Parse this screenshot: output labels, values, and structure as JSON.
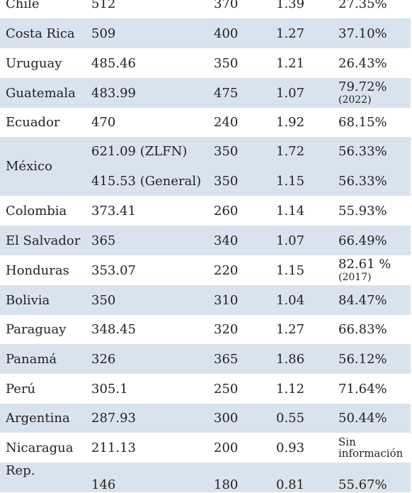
{
  "rows": [
    {
      "country": "Chile",
      "v1": "512",
      "v2": "370",
      "v3": "1.39",
      "v4": "27.35%"
    },
    {
      "country": "Costa Rica",
      "v1": "509",
      "v2": "400",
      "v3": "1.27",
      "v4": "37.10%"
    },
    {
      "country": "Uruguay",
      "v1": "485.46",
      "v2": "350",
      "v3": "1.21",
      "v4": "26.43%"
    },
    {
      "country": "Guatemala",
      "v1": "483.99",
      "v2": "475",
      "v3": "1.07",
      "v4": "79.72%",
      "v4_note": "(2022)"
    },
    {
      "country": "Ecuador",
      "v1": "470",
      "v2": "240",
      "v3": "1.92",
      "v4": "68.15%"
    },
    {
      "country": "México",
      "sub": [
        {
          "v1": "621.09 (ZLFN)",
          "v2": "350",
          "v3": "1.72",
          "v4": "56.33%"
        },
        {
          "v1": "415.53 (General)",
          "v2": "350",
          "v3": "1.15",
          "v4": "56.33%"
        }
      ]
    },
    {
      "country": "Colombia",
      "v1": "373.41",
      "v2": "260",
      "v3": "1.14",
      "v4": "55.93%"
    },
    {
      "country": "El Salvador",
      "v1": "365",
      "v2": "340",
      "v3": "1.07",
      "v4": "66.49%"
    },
    {
      "country": "Honduras",
      "v1": "353.07",
      "v2": "220",
      "v3": "1.15",
      "v4": "82.61 %",
      "v4_note": "(2017)"
    },
    {
      "country": "Bolivia",
      "v1": "350",
      "v2": "310",
      "v3": "1.04",
      "v4": "84.47%"
    },
    {
      "country": "Paraguay",
      "v1": "348.45",
      "v2": "320",
      "v3": "1.27",
      "v4": "66.83%"
    },
    {
      "country": "Panamá",
      "v1": "326",
      "v2": "365",
      "v3": "1.86",
      "v4": "56.12%"
    },
    {
      "country": "Perú",
      "v1": "305.1",
      "v2": "250",
      "v3": "1.12",
      "v4": "71.64%"
    },
    {
      "country": "Argentina",
      "v1": "287.93",
      "v2": "300",
      "v3": "0.55",
      "v4": "50.44%"
    },
    {
      "country": "Nicaragua",
      "v1": "211.13",
      "v2": "200",
      "v3": "0.93",
      "v4_line1": "Sin",
      "v4_line2": "información"
    },
    {
      "country_line1": "Rep.",
      "v1": "146",
      "v2": "180",
      "v3": "0.81",
      "v4": "55.67%"
    }
  ],
  "colors": {
    "band": "#d9e3ee",
    "text": "#222222"
  }
}
